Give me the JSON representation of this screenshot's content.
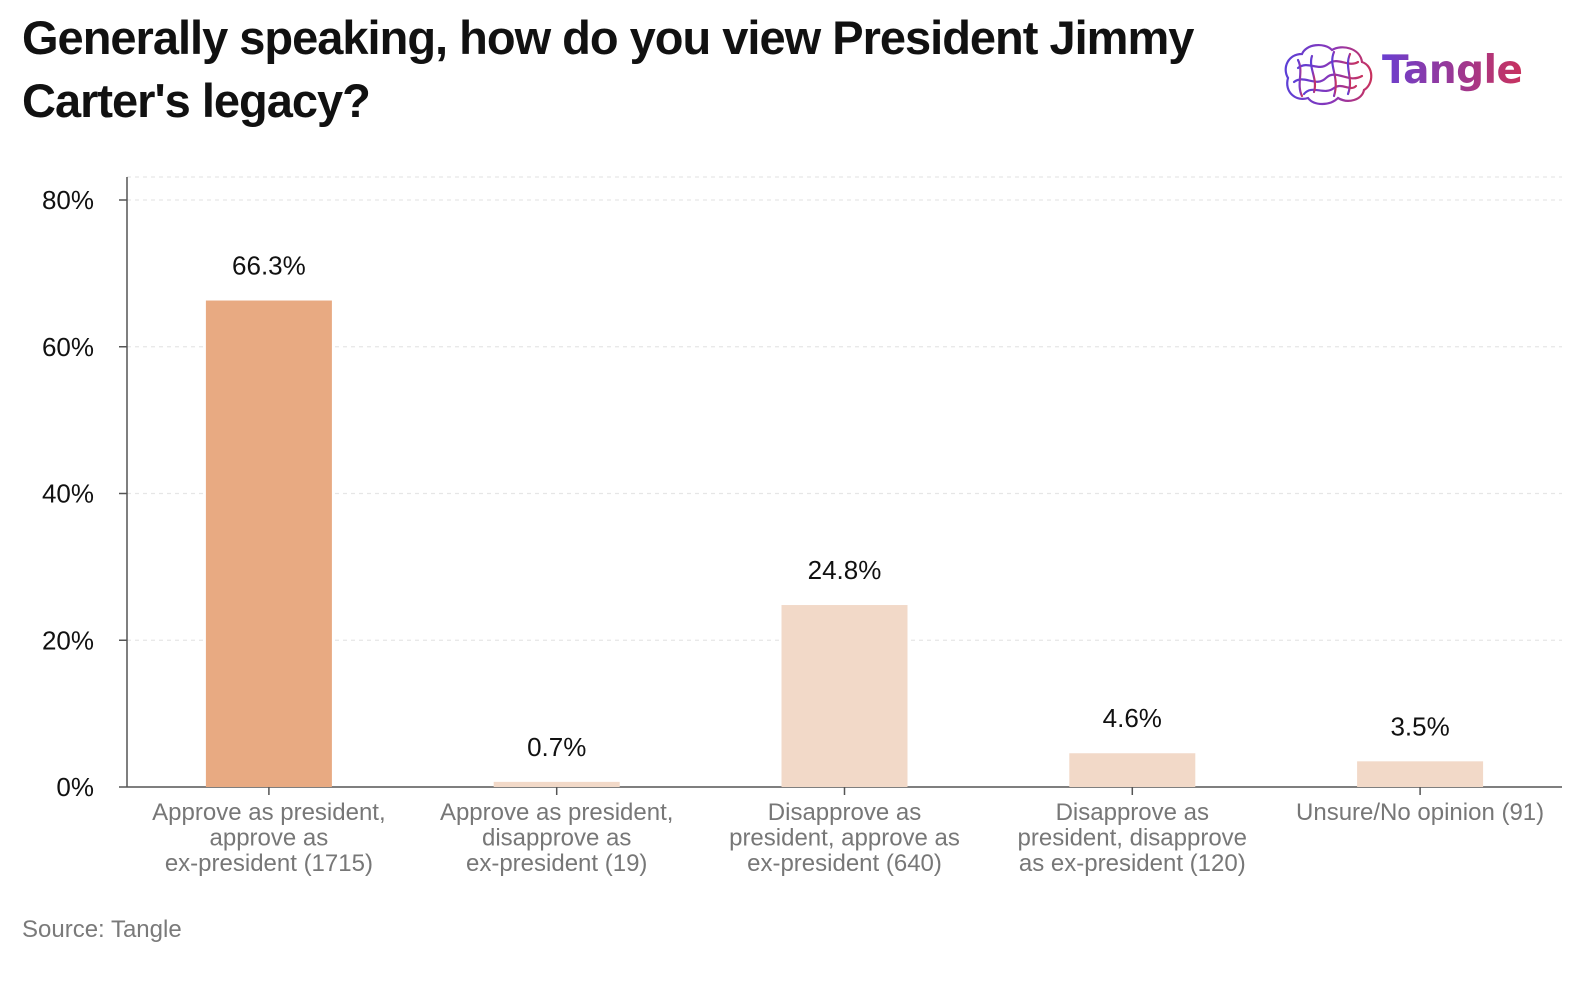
{
  "title": "Generally speaking, how do you view President Jimmy Carter's legacy?",
  "brand": {
    "name": "Tangle",
    "icon": "brain-icon",
    "colors": [
      "#5b3fd6",
      "#8a36b8",
      "#c8325e"
    ]
  },
  "source": "Source: Tangle",
  "colors": {
    "highlight": "#e8aa82",
    "muted": "#f2d9c8",
    "axis": "#555555",
    "grid": "#e6e6e6",
    "tick_text": "#111111",
    "category_text": "#777777"
  },
  "chart_data": {
    "type": "bar",
    "categories": [
      [
        "Approve as president,",
        "approve as",
        "ex-president (1715)"
      ],
      [
        "Approve as president,",
        "disapprove as",
        "ex-president (19)"
      ],
      [
        "Disapprove as",
        "president, approve as",
        "ex-president (640)"
      ],
      [
        "Disapprove as",
        "president, disapprove",
        "as ex-president (120)"
      ],
      [
        "Unsure/No opinion (91)"
      ]
    ],
    "values": [
      66.3,
      0.7,
      24.8,
      4.6,
      3.5
    ],
    "value_labels": [
      "66.3%",
      "0.7%",
      "24.8%",
      "4.6%",
      "3.5%"
    ],
    "highlighted_index": 0,
    "y_ticks": [
      "0%",
      "20%",
      "40%",
      "60%",
      "80%"
    ],
    "y_tick_values": [
      0,
      20,
      40,
      60,
      80
    ],
    "ylim": [
      0,
      80
    ],
    "grid": true,
    "legend": "none"
  }
}
